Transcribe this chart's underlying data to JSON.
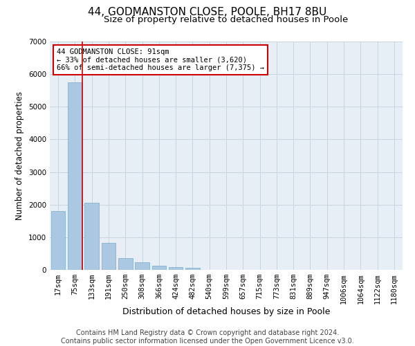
{
  "title1": "44, GODMANSTON CLOSE, POOLE, BH17 8BU",
  "title2": "Size of property relative to detached houses in Poole",
  "xlabel": "Distribution of detached houses by size in Poole",
  "ylabel": "Number of detached properties",
  "categories": [
    "17sqm",
    "75sqm",
    "133sqm",
    "191sqm",
    "250sqm",
    "308sqm",
    "366sqm",
    "424sqm",
    "482sqm",
    "540sqm",
    "599sqm",
    "657sqm",
    "715sqm",
    "773sqm",
    "831sqm",
    "889sqm",
    "947sqm",
    "1006sqm",
    "1064sqm",
    "1122sqm",
    "1180sqm"
  ],
  "values": [
    1800,
    5750,
    2060,
    820,
    370,
    230,
    120,
    80,
    70,
    0,
    0,
    0,
    0,
    0,
    0,
    0,
    0,
    0,
    0,
    0,
    0
  ],
  "bar_color": "#abc8e2",
  "bar_edge_color": "#7aaac8",
  "highlight_color": "#cc0000",
  "property_label": "44 GODMANSTON CLOSE: 91sqm",
  "annotation_line1": "← 33% of detached houses are smaller (3,620)",
  "annotation_line2": "66% of semi-detached houses are larger (7,375) →",
  "annotation_box_color": "#cc0000",
  "ylim": [
    0,
    7000
  ],
  "yticks": [
    0,
    1000,
    2000,
    3000,
    4000,
    5000,
    6000,
    7000
  ],
  "footer1": "Contains HM Land Registry data © Crown copyright and database right 2024.",
  "footer2": "Contains public sector information licensed under the Open Government Licence v3.0.",
  "bg_color": "#ffffff",
  "plot_bg_color": "#e8eef5",
  "grid_color": "#c8d4e0",
  "title1_fontsize": 11,
  "title2_fontsize": 9.5,
  "xlabel_fontsize": 9,
  "ylabel_fontsize": 8.5,
  "tick_fontsize": 7.5,
  "footer_fontsize": 7,
  "annot_fontsize": 7.5,
  "vline_x": 1.45
}
